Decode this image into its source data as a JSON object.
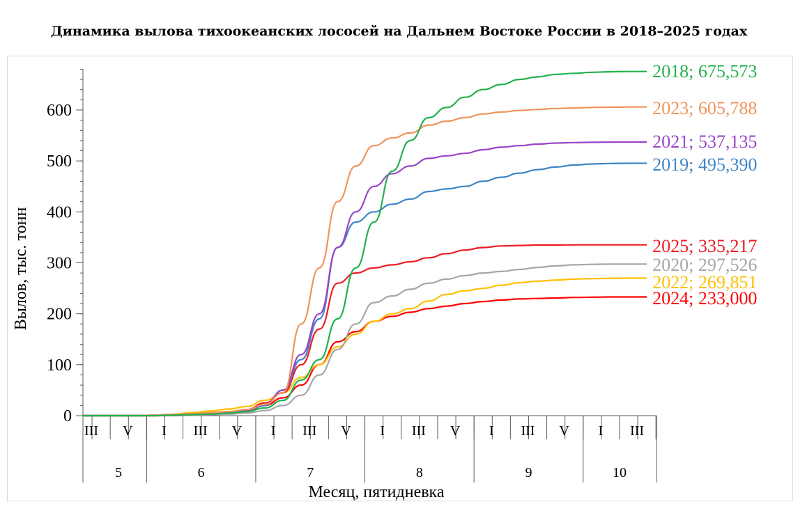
{
  "chart_data": {
    "type": "line",
    "title": "Динамика вылова тихоокеанских лососей на Дальнем Востоке России в 2018–2025 годах",
    "xlabel": "Месяц, пятидневка",
    "ylabel": "Вылов, тыс. тонн",
    "ylim": [
      0,
      680
    ],
    "yticks": [
      0,
      100,
      200,
      300,
      400,
      500,
      600
    ],
    "grid": false,
    "legend": "end-of-line labels",
    "x_sublabels": [
      "III",
      "V",
      "I",
      "III",
      "V",
      "I",
      "III",
      "V",
      "I",
      "III",
      "V",
      "I",
      "III",
      "V",
      "I",
      "III"
    ],
    "x_months": [
      "5",
      "6",
      "7",
      "8",
      "9",
      "10"
    ],
    "x": [
      "5-III",
      "5-IV",
      "5-V",
      "5-VI",
      "6-I",
      "6-II",
      "6-III",
      "6-IV",
      "6-V",
      "6-VI",
      "7-I",
      "7-II",
      "7-III",
      "7-IV",
      "7-V",
      "7-VI",
      "8-I",
      "8-II",
      "8-III",
      "8-IV",
      "8-V",
      "8-VI",
      "9-I",
      "9-II",
      "9-III",
      "9-IV",
      "9-V",
      "9-VI",
      "10-I",
      "10-II",
      "10-III",
      "10-IV"
    ],
    "series": [
      {
        "name": "2018",
        "label": "2018; 675,573",
        "color": "#22b14c",
        "values": [
          0,
          0,
          0,
          0,
          0,
          1,
          2,
          3,
          5,
          8,
          15,
          30,
          70,
          110,
          190,
          290,
          380,
          480,
          540,
          585,
          605,
          625,
          640,
          650,
          660,
          665,
          670,
          672,
          674,
          675,
          675.6,
          675.6
        ]
      },
      {
        "name": "2023",
        "label": "2023; 605,788",
        "color": "#f0935a",
        "values": [
          0,
          0,
          0,
          0,
          1,
          2,
          4,
          6,
          8,
          12,
          22,
          45,
          180,
          290,
          420,
          490,
          530,
          545,
          555,
          570,
          578,
          585,
          592,
          596,
          599,
          601,
          603,
          604,
          605,
          605.5,
          605.8,
          605.8
        ]
      },
      {
        "name": "2021",
        "label": "2021; 537,135",
        "color": "#9a44c8",
        "values": [
          0,
          0,
          0,
          0,
          1,
          2,
          3,
          4,
          6,
          10,
          22,
          50,
          120,
          200,
          330,
          400,
          450,
          475,
          490,
          505,
          510,
          515,
          522,
          527,
          530,
          533,
          535,
          536,
          536.5,
          537,
          537.1,
          537.1
        ]
      },
      {
        "name": "2019",
        "label": "2019; 495,390",
        "color": "#3d85c6",
        "values": [
          0,
          0,
          0,
          0,
          1,
          2,
          3,
          4,
          5,
          8,
          20,
          50,
          110,
          190,
          330,
          380,
          400,
          415,
          425,
          440,
          445,
          450,
          460,
          468,
          476,
          483,
          488,
          492,
          494,
          495,
          495.4,
          495.4
        ]
      },
      {
        "name": "2025",
        "label": "2025; 335,217",
        "color": "#ee1c24",
        "values": [
          0,
          0,
          0,
          0,
          0,
          1,
          2,
          4,
          7,
          12,
          25,
          45,
          100,
          170,
          260,
          280,
          290,
          296,
          302,
          310,
          318,
          325,
          330,
          333,
          334,
          335,
          335,
          335.2,
          335.2,
          335.2,
          335.2,
          335.2
        ]
      },
      {
        "name": "2020",
        "label": "2020; 297,526",
        "color": "#a6a6a6",
        "values": [
          0,
          0,
          0,
          0,
          0,
          0,
          1,
          2,
          3,
          5,
          10,
          20,
          40,
          80,
          130,
          180,
          222,
          235,
          248,
          260,
          268,
          275,
          280,
          283,
          287,
          291,
          294,
          296,
          297,
          297.5,
          297.5,
          297.5
        ]
      },
      {
        "name": "2022",
        "label": "2022; 269,851",
        "color": "#ffc000",
        "values": [
          0,
          0,
          0,
          0,
          1,
          3,
          6,
          9,
          13,
          18,
          30,
          45,
          75,
          100,
          135,
          160,
          185,
          200,
          210,
          225,
          238,
          245,
          250,
          256,
          261,
          264,
          266,
          268,
          269,
          269.5,
          269.9,
          269.9
        ]
      },
      {
        "name": "2024",
        "label": "2024; 233,000",
        "color": "#ff0000",
        "values": [
          0,
          0,
          0,
          0,
          0,
          1,
          2,
          3,
          5,
          8,
          20,
          35,
          60,
          100,
          145,
          165,
          185,
          195,
          203,
          210,
          215,
          220,
          224,
          227,
          229,
          230,
          231,
          232,
          232.5,
          233,
          233,
          233
        ]
      }
    ]
  }
}
